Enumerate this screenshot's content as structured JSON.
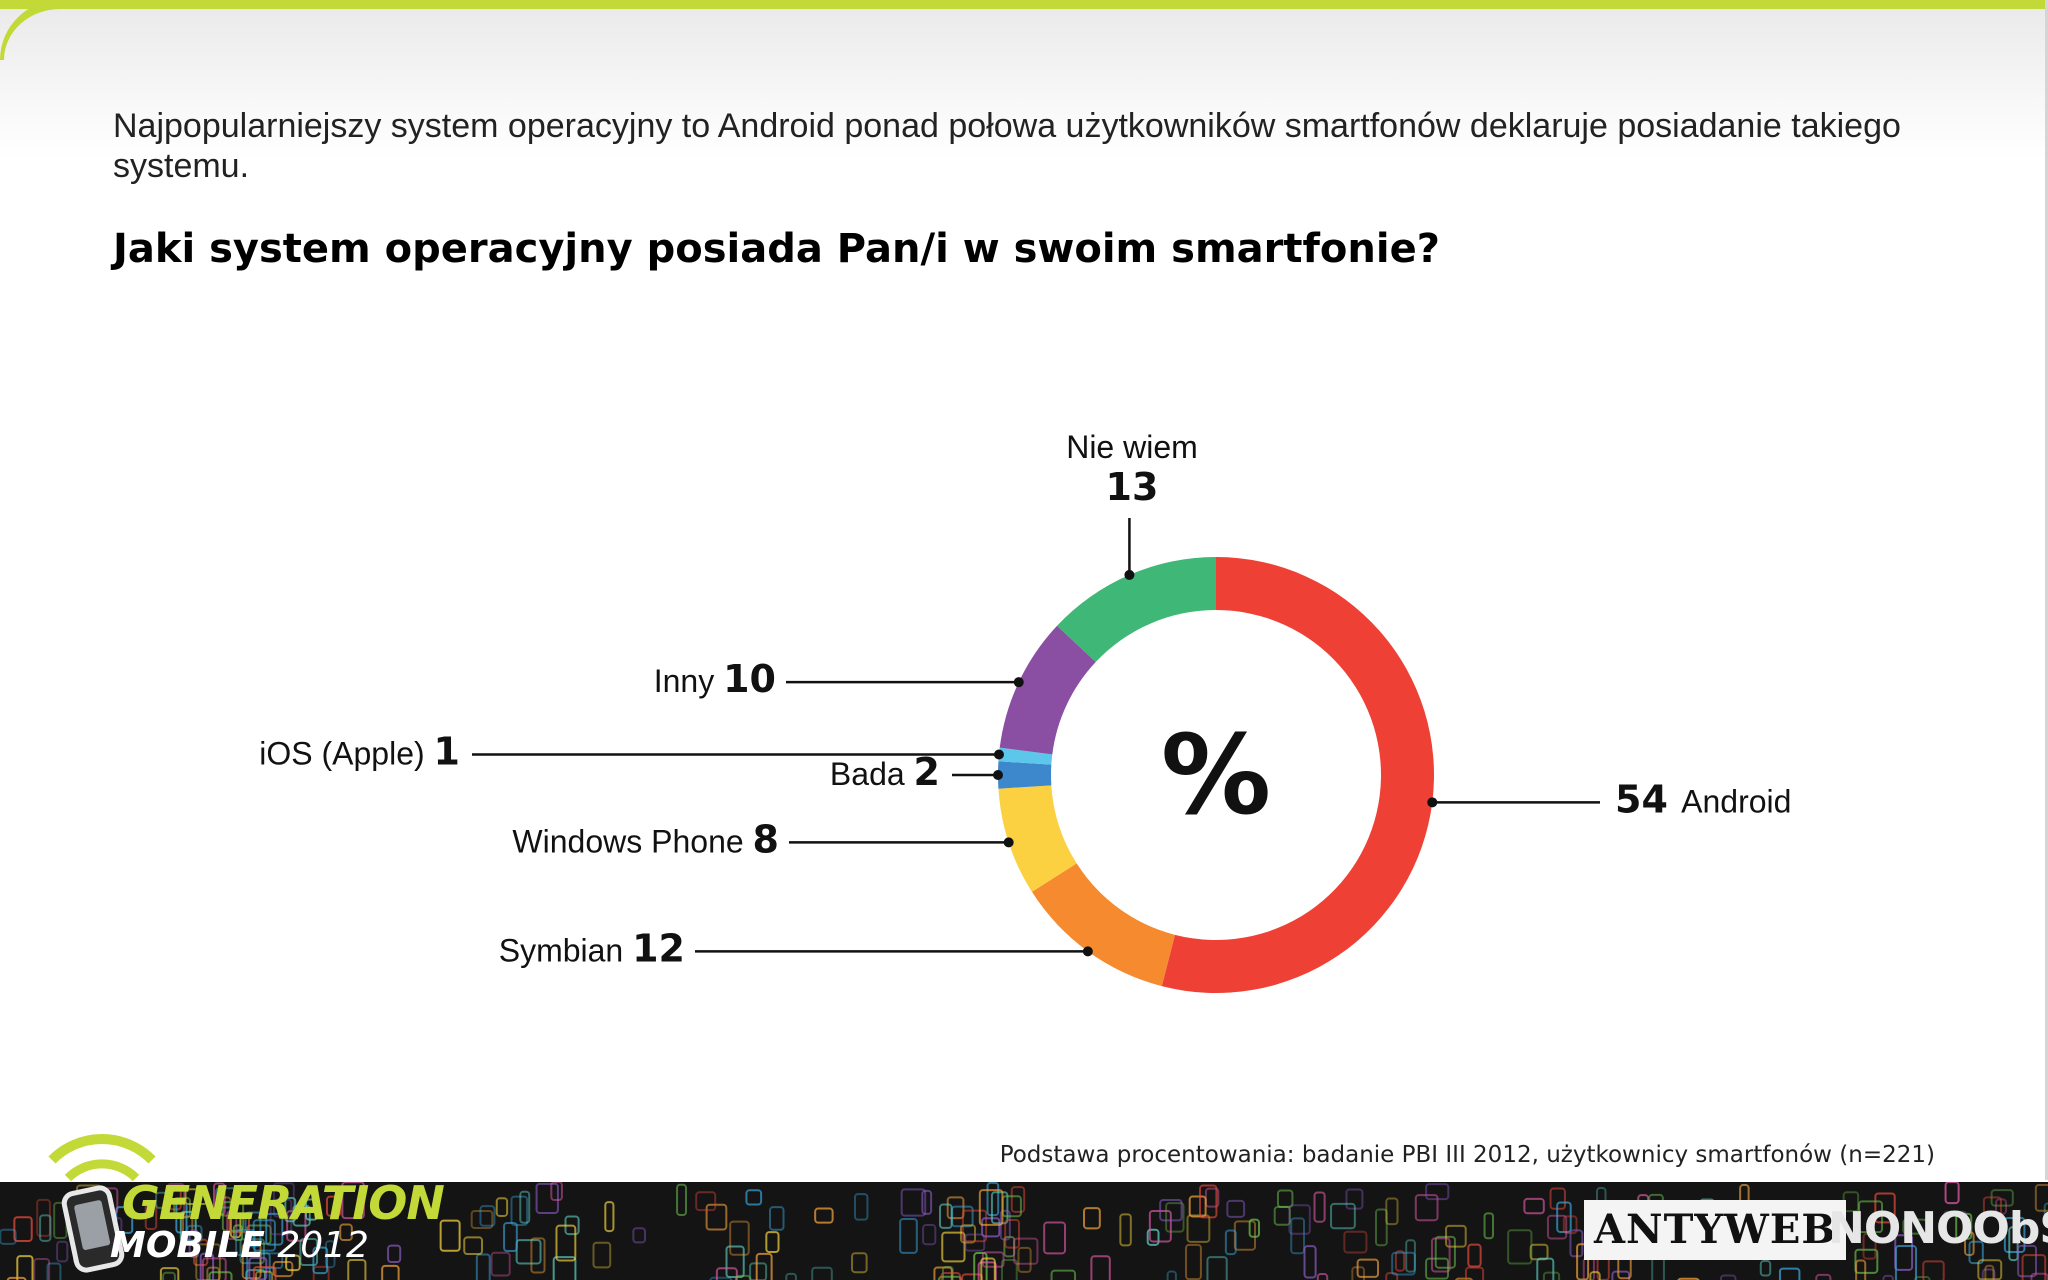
{
  "header": {
    "intro": "Najpopularniejszy system operacyjny to Android ponad połowa użytkowników smartfonów deklaruje posiadanie takiego systemu.",
    "question": "Jaki system operacyjny posiada Pan/i w swoim smartfonie?"
  },
  "chart_data": {
    "type": "pie",
    "variant": "donut",
    "center_label": "%",
    "categories": [
      "Android",
      "Symbian",
      "Windows Phone",
      "Bada",
      "iOS (Apple)",
      "Inny",
      "Nie wiem"
    ],
    "values": [
      54,
      12,
      8,
      2,
      1,
      10,
      13
    ],
    "colors": [
      "#ee4035",
      "#f58a2e",
      "#fcd141",
      "#3d88cc",
      "#5cc7ea",
      "#8a4ea3",
      "#3fb776"
    ],
    "title": "Jaki system operacyjny posiada Pan/i w swoim smartfonie?"
  },
  "footnote": "Podstawa procentowania: badanie PBI III 2012, użytkownicy smartfonów (n=221)",
  "footer": {
    "brand_title": "GENERATION",
    "brand_sub": "MOBILE",
    "brand_year": "2012",
    "logo_antyweb": "ANTYWEB",
    "logo_nonoobs": "NONOObS"
  }
}
